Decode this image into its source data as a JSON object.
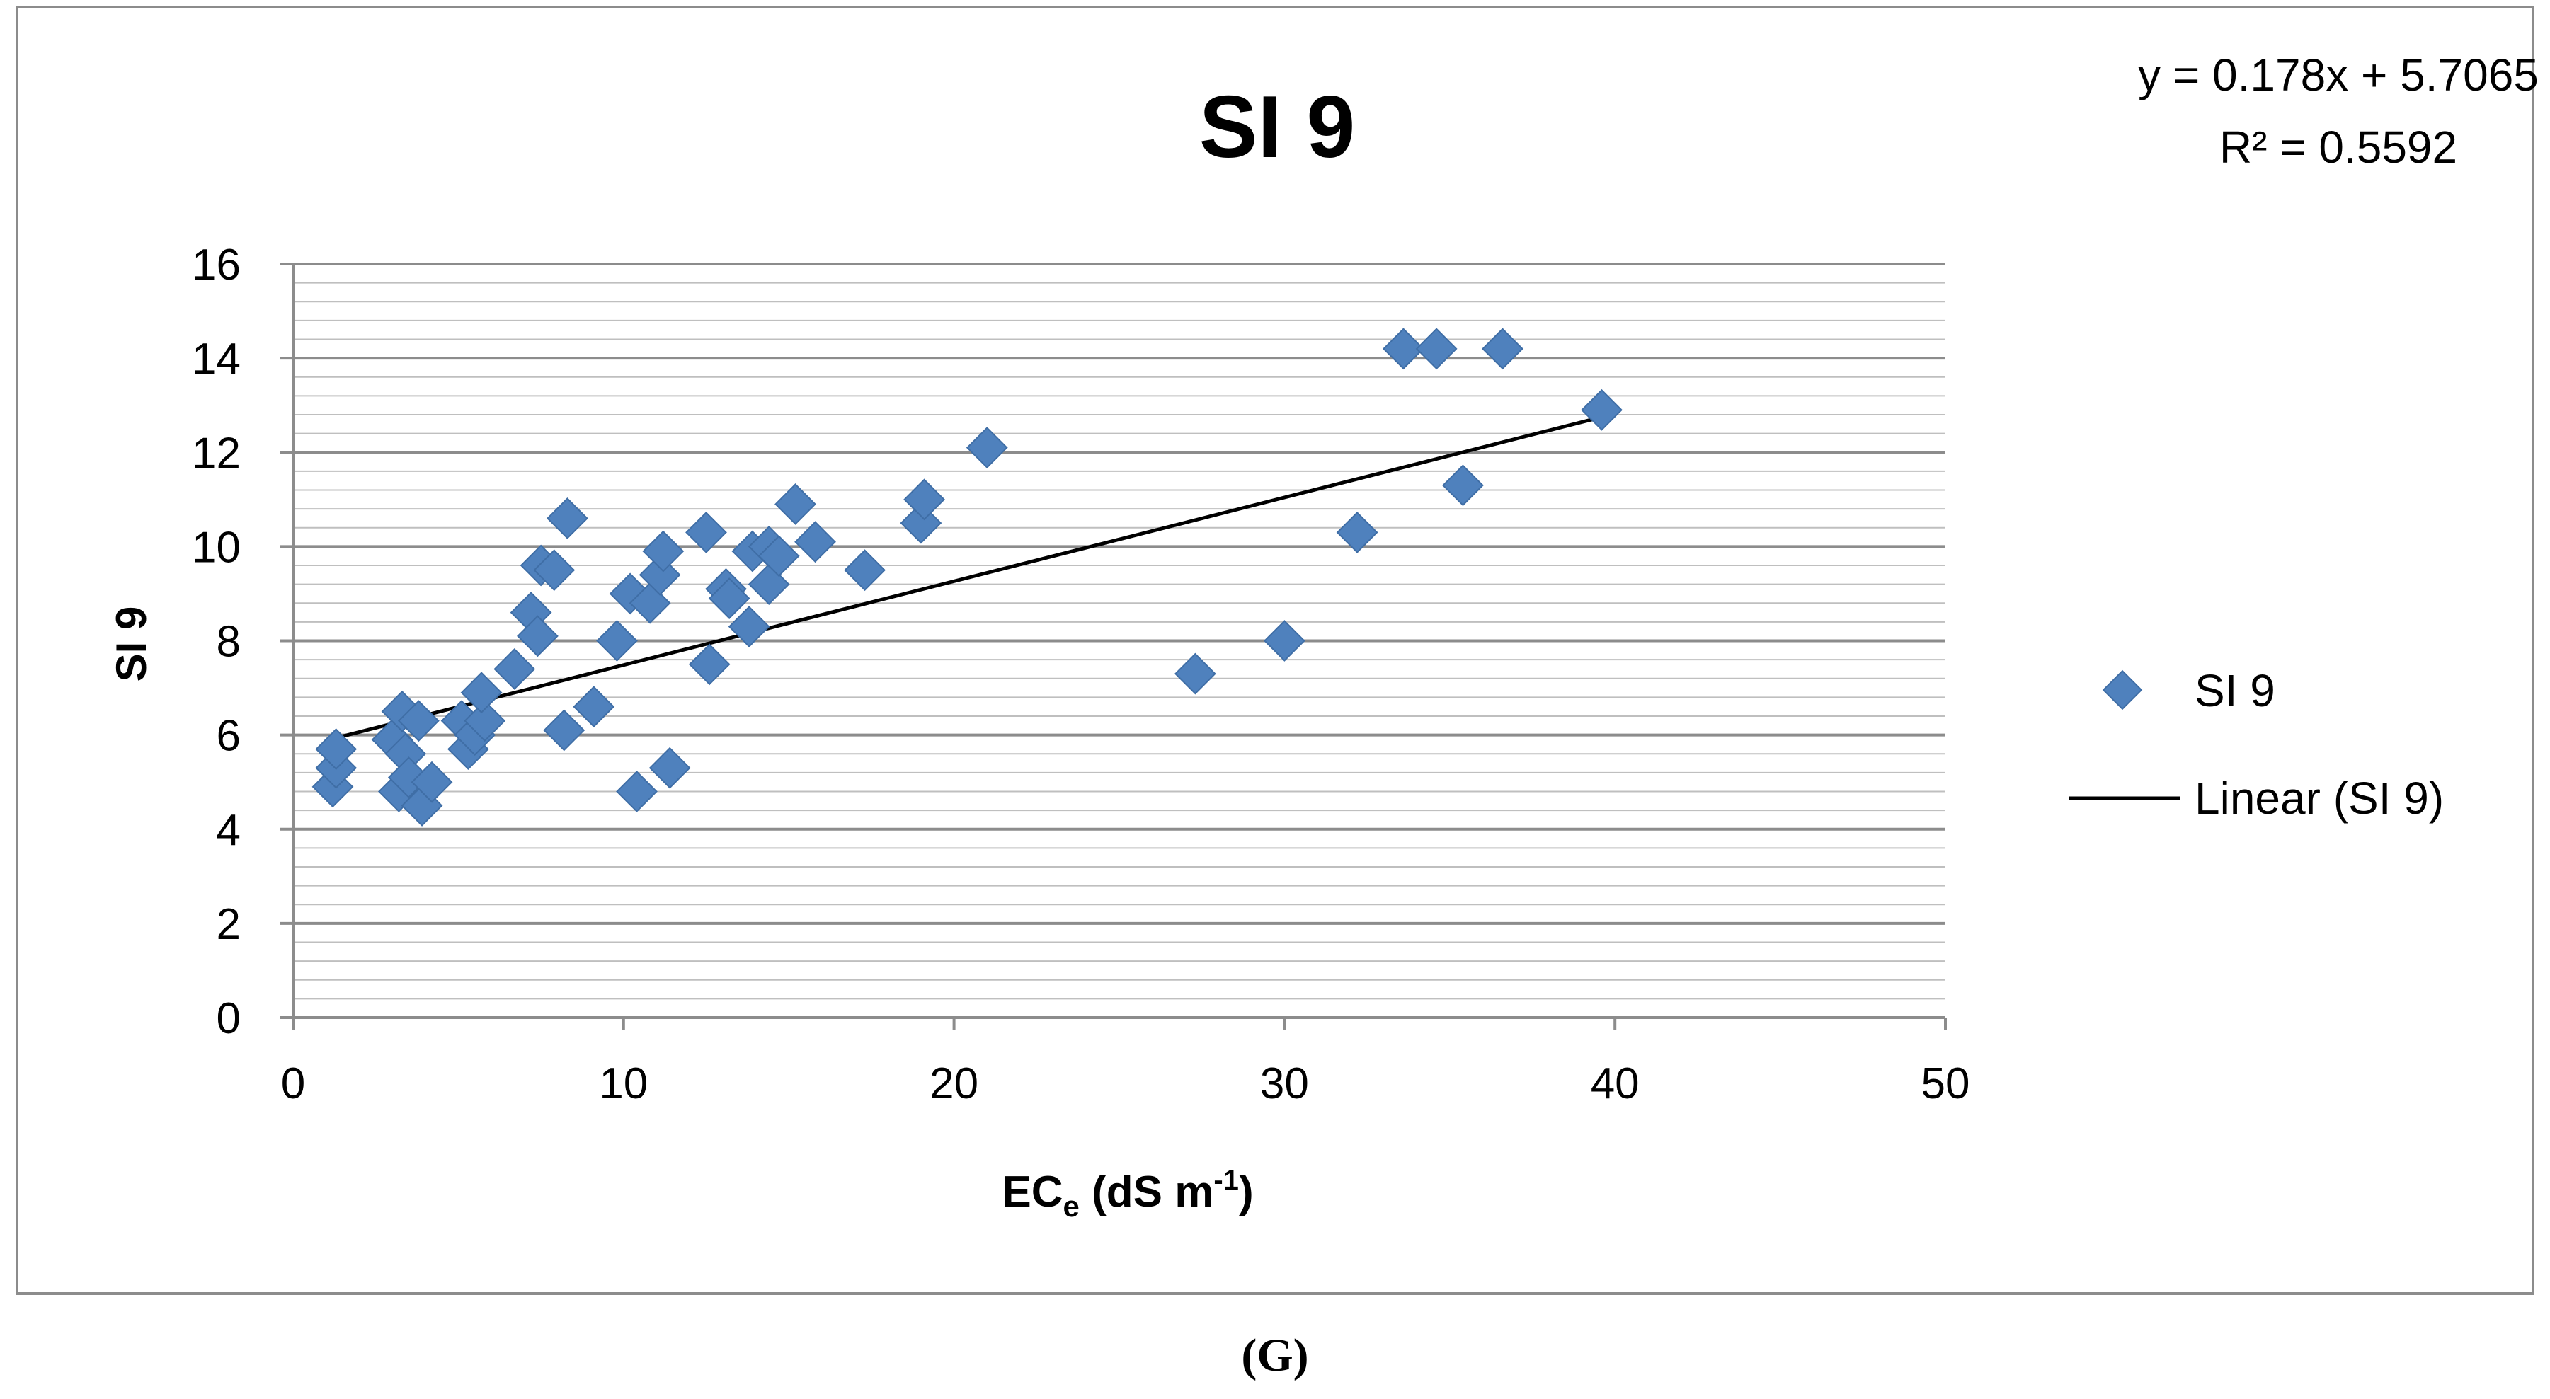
{
  "panel_label": "(G)",
  "chart_data": {
    "type": "scatter",
    "title": "SI 9",
    "xlabel": "EC",
    "xlabel_sub": "e",
    "xlabel_unit": " (dS m",
    "xlabel_sup": "-1",
    "xlabel_close": ")",
    "ylabel": "SI 9",
    "xlim": [
      0,
      50
    ],
    "ylim": [
      0,
      16
    ],
    "x_ticks": [
      0,
      10,
      20,
      30,
      40,
      50
    ],
    "y_ticks": [
      0,
      2,
      4,
      6,
      8,
      10,
      12,
      14,
      16
    ],
    "y_minor_step": 0.4,
    "grid": true,
    "legend_position": "right",
    "series": [
      {
        "name": "SI 9",
        "marker": "diamond",
        "color": "#4f81bd",
        "points": [
          [
            1.2,
            4.9
          ],
          [
            1.3,
            5.3
          ],
          [
            1.3,
            5.7
          ],
          [
            3.0,
            5.9
          ],
          [
            3.2,
            4.8
          ],
          [
            3.3,
            6.5
          ],
          [
            3.4,
            5.6
          ],
          [
            3.5,
            5.1
          ],
          [
            3.8,
            6.3
          ],
          [
            3.9,
            4.5
          ],
          [
            4.2,
            5.0
          ],
          [
            5.1,
            6.3
          ],
          [
            5.3,
            5.7
          ],
          [
            5.5,
            6.0
          ],
          [
            5.8,
            6.3
          ],
          [
            5.7,
            6.9
          ],
          [
            6.7,
            7.4
          ],
          [
            7.2,
            8.6
          ],
          [
            7.4,
            8.1
          ],
          [
            7.5,
            9.6
          ],
          [
            7.9,
            9.5
          ],
          [
            8.2,
            6.1
          ],
          [
            8.3,
            10.6
          ],
          [
            9.1,
            6.6
          ],
          [
            9.8,
            8.0
          ],
          [
            10.2,
            9.0
          ],
          [
            10.4,
            4.8
          ],
          [
            10.8,
            8.8
          ],
          [
            11.1,
            9.4
          ],
          [
            11.2,
            9.9
          ],
          [
            11.4,
            5.3
          ],
          [
            12.5,
            10.3
          ],
          [
            12.6,
            7.5
          ],
          [
            13.1,
            9.1
          ],
          [
            13.2,
            8.9
          ],
          [
            13.8,
            8.3
          ],
          [
            13.9,
            9.9
          ],
          [
            14.4,
            9.2
          ],
          [
            14.4,
            10.0
          ],
          [
            14.7,
            9.8
          ],
          [
            15.2,
            10.9
          ],
          [
            15.8,
            10.1
          ],
          [
            17.3,
            9.5
          ],
          [
            19.0,
            10.5
          ],
          [
            19.1,
            11.0
          ],
          [
            21.0,
            12.1
          ],
          [
            27.3,
            7.3
          ],
          [
            30.0,
            8.0
          ],
          [
            32.2,
            10.3
          ],
          [
            33.6,
            14.2
          ],
          [
            34.6,
            14.2
          ],
          [
            35.4,
            11.3
          ],
          [
            36.6,
            14.2
          ],
          [
            39.6,
            12.9
          ]
        ]
      },
      {
        "name": "Linear (SI 9)",
        "type": "line",
        "color": "#000000",
        "points": [
          [
            1.2,
            5.92
          ],
          [
            39.6,
            12.75
          ]
        ]
      }
    ],
    "trendline": {
      "equation": "y = 0.178x + 5.7065",
      "r2_label": "R² = 0.5592"
    }
  }
}
